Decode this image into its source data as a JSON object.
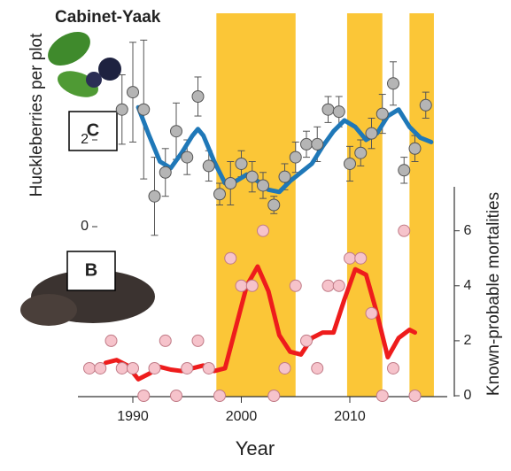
{
  "chart_data": [
    {
      "type": "line",
      "title": "Cabinet-Yaak",
      "panel_label": "C",
      "ylabel": "Huckleberries per plot",
      "xlim": [
        1984,
        2019
      ],
      "ylim": [
        -0.5,
        4.8
      ],
      "yticks": [
        0,
        2
      ],
      "highlight_spans": [
        [
          1997.7,
          2005.0
        ],
        [
          2009.75,
          2013.0
        ],
        [
          2015.5,
          2017.75
        ]
      ],
      "highlight_color": "#fbc637",
      "points": {
        "color": "#b5b5b5",
        "x": [
          1989,
          1990,
          1991,
          1992,
          1993,
          1994,
          1995,
          1996,
          1997,
          1998,
          1999,
          2000,
          2001,
          2002,
          2003,
          2004,
          2005,
          2006,
          2007,
          2008,
          2009,
          2010,
          2011,
          2012,
          2013,
          2014,
          2015,
          2016,
          2017
        ],
        "values": [
          2.7,
          3.1,
          2.7,
          0.7,
          1.25,
          2.2,
          1.6,
          3.0,
          1.4,
          0.75,
          1.0,
          1.45,
          1.15,
          0.95,
          0.5,
          1.15,
          1.6,
          1.9,
          1.9,
          2.7,
          2.65,
          1.45,
          1.7,
          2.15,
          2.6,
          3.3,
          1.3,
          1.8,
          2.8
        ],
        "errors": [
          0.8,
          1.15,
          1.6,
          0.9,
          0.55,
          0.65,
          0.4,
          0.45,
          0.35,
          0.25,
          0.5,
          0.3,
          0.35,
          0.3,
          0.2,
          0.3,
          0.35,
          0.3,
          0.4,
          0.3,
          0.35,
          0.4,
          0.3,
          0.35,
          0.45,
          0.5,
          0.3,
          0.3,
          0.3
        ]
      },
      "smooth": {
        "color": "#1f78b8",
        "x": [
          1990.5,
          1991.5,
          1992.5,
          1993.5,
          1994.5,
          1995.5,
          1996,
          1996.5,
          1997.5,
          1998.5,
          1999.5,
          2000.5,
          2001.5,
          2002.5,
          2003.5,
          2004.5,
          2005.5,
          2006.5,
          2007.5,
          2008.5,
          2009.5,
          2010.5,
          2011.5,
          2012.5,
          2013.5,
          2014.5,
          2015.5,
          2016.5,
          2017.5
        ],
        "values": [
          2.75,
          2.1,
          1.5,
          1.35,
          1.7,
          2.1,
          2.25,
          2.1,
          1.5,
          1.0,
          1.05,
          1.2,
          1.05,
          0.85,
          0.8,
          1.05,
          1.25,
          1.45,
          1.85,
          2.2,
          2.45,
          2.3,
          2.0,
          2.15,
          2.55,
          2.7,
          2.3,
          2.05,
          1.95
        ]
      }
    },
    {
      "type": "line",
      "panel_label": "B",
      "xlabel": "Year",
      "ylabel": "Known-probable mortalities",
      "xlim": [
        1984,
        2019
      ],
      "xticks": [
        1990,
        2000,
        2010
      ],
      "ylim": [
        0,
        7.6
      ],
      "yticks": [
        0,
        2,
        4,
        6
      ],
      "points": {
        "color": "#f6c3cb",
        "x": [
          1986,
          1987,
          1988,
          1989,
          1990,
          1991,
          1992,
          1993,
          1994,
          1995,
          1996,
          1997,
          1998,
          1999,
          2000,
          2001,
          2002,
          2003,
          2004,
          2005,
          2006,
          2007,
          2008,
          2009,
          2010,
          2011,
          2012,
          2013,
          2014,
          2015,
          2016
        ],
        "values": [
          1,
          1,
          2,
          1,
          1,
          0,
          1,
          2,
          0,
          1,
          2,
          1,
          0,
          5,
          4,
          4,
          6,
          0,
          1,
          4,
          2,
          1,
          4,
          4,
          5,
          5,
          3,
          0,
          1,
          6,
          0
        ]
      },
      "smooth": {
        "color": "#ee1c1c",
        "x": [
          1987.5,
          1988.5,
          1989.5,
          1990.5,
          1991.5,
          1992.5,
          1993.5,
          1994.5,
          1995.5,
          1996.5,
          1997.5,
          1998.5,
          1999.5,
          2000.5,
          2001.5,
          2002.5,
          2003.5,
          2004.5,
          2005.5,
          2006.5,
          2007.5,
          2008.5,
          2009.5,
          2010.5,
          2011.5,
          2012.5,
          2013.5,
          2014.5,
          2015.5,
          2016
        ],
        "values": [
          1.2,
          1.3,
          1.1,
          0.6,
          0.8,
          1.05,
          0.95,
          0.9,
          1.0,
          1.1,
          0.9,
          1.0,
          2.5,
          4.0,
          4.7,
          3.8,
          2.2,
          1.6,
          1.5,
          2.1,
          2.3,
          2.3,
          3.5,
          4.6,
          4.4,
          3.0,
          1.4,
          2.1,
          2.4,
          2.3
        ]
      }
    }
  ]
}
